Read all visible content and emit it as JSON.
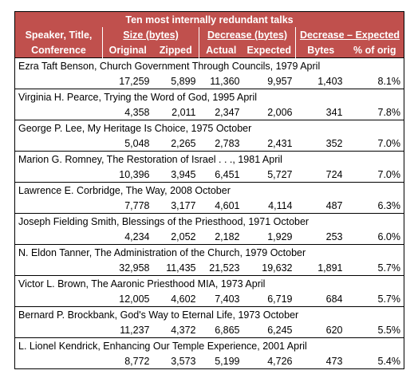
{
  "table": {
    "title": "Ten most internally redundant talks",
    "header_row1": [
      "Speaker, Title,",
      "Size (bytes)",
      "Decrease (bytes)",
      "Decrease – Expected"
    ],
    "header_row2": [
      "Conference",
      "Original",
      "Zipped",
      "Actual",
      "Expected",
      "Bytes",
      "% of orig"
    ],
    "entries": [
      {
        "talk": "Ezra Taft Benson, Church Government Through Councils, 1979 April",
        "values": [
          "17,259",
          "5,899",
          "11,360",
          "9,957",
          "1,403",
          "8.1%"
        ]
      },
      {
        "talk": "Virginia H. Pearce, Trying the Word of God, 1995 April",
        "values": [
          "4,358",
          "2,011",
          "2,347",
          "2,006",
          "341",
          "7.8%"
        ]
      },
      {
        "talk": "George P. Lee, My Heritage Is Choice, 1975 October",
        "values": [
          "5,048",
          "2,265",
          "2,783",
          "2,431",
          "352",
          "7.0%"
        ]
      },
      {
        "talk": "Marion G. Romney, The Restoration of Israel . . ., 1981 April",
        "values": [
          "10,396",
          "3,945",
          "6,451",
          "5,727",
          "724",
          "7.0%"
        ]
      },
      {
        "talk": "Lawrence E. Corbridge, The Way, 2008 October",
        "values": [
          "7,778",
          "3,177",
          "4,601",
          "4,114",
          "487",
          "6.3%"
        ]
      },
      {
        "talk": "Joseph Fielding Smith, Blessings of the Priesthood, 1971 October",
        "values": [
          "4,234",
          "2,052",
          "2,182",
          "1,929",
          "253",
          "6.0%"
        ]
      },
      {
        "talk": "N. Eldon Tanner, The Administration of the Church, 1979 October",
        "values": [
          "32,958",
          "11,435",
          "21,523",
          "19,632",
          "1,891",
          "5.7%"
        ]
      },
      {
        "talk": "Victor L. Brown, The Aaronic Priesthood MIA, 1973 April",
        "values": [
          "12,005",
          "4,602",
          "7,403",
          "6,719",
          "684",
          "5.7%"
        ]
      },
      {
        "talk": "Bernard P. Brockbank, God's Way to Eternal Life, 1973 October",
        "values": [
          "11,237",
          "4,372",
          "6,865",
          "6,245",
          "620",
          "5.5%"
        ]
      },
      {
        "talk": "L. Lionel Kendrick, Enhancing Our Temple Experience, 2001 April",
        "values": [
          "8,772",
          "3,573",
          "5,199",
          "4,726",
          "473",
          "5.4%"
        ]
      }
    ]
  }
}
